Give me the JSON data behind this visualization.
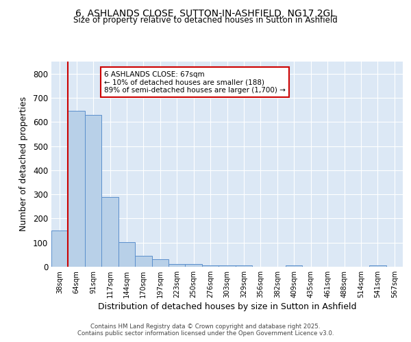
{
  "title_line1": "6, ASHLANDS CLOSE, SUTTON-IN-ASHFIELD, NG17 2GL",
  "title_line2": "Size of property relative to detached houses in Sutton in Ashfield",
  "xlabel": "Distribution of detached houses by size in Sutton in Ashfield",
  "ylabel": "Number of detached properties",
  "categories": [
    "38sqm",
    "64sqm",
    "91sqm",
    "117sqm",
    "144sqm",
    "170sqm",
    "197sqm",
    "223sqm",
    "250sqm",
    "276sqm",
    "303sqm",
    "329sqm",
    "356sqm",
    "382sqm",
    "409sqm",
    "435sqm",
    "461sqm",
    "488sqm",
    "514sqm",
    "541sqm",
    "567sqm"
  ],
  "values": [
    150,
    645,
    630,
    290,
    103,
    46,
    32,
    10,
    10,
    7,
    5,
    7,
    0,
    0,
    5,
    0,
    0,
    0,
    0,
    7,
    0
  ],
  "bar_color": "#b8d0e8",
  "bar_edge_color": "#5b8fcc",
  "bg_color": "#dce8f5",
  "grid_color": "#ffffff",
  "vline_x": 0.5,
  "vline_color": "#cc0000",
  "annotation_text": "6 ASHLANDS CLOSE: 67sqm\n← 10% of detached houses are smaller (188)\n89% of semi-detached houses are larger (1,700) →",
  "annotation_box_color": "#ffffff",
  "annotation_box_edge": "#cc0000",
  "footer_text": "Contains HM Land Registry data © Crown copyright and database right 2025.\nContains public sector information licensed under the Open Government Licence v3.0.",
  "ylim": [
    0,
    850
  ],
  "yticks": [
    0,
    100,
    200,
    300,
    400,
    500,
    600,
    700,
    800
  ]
}
